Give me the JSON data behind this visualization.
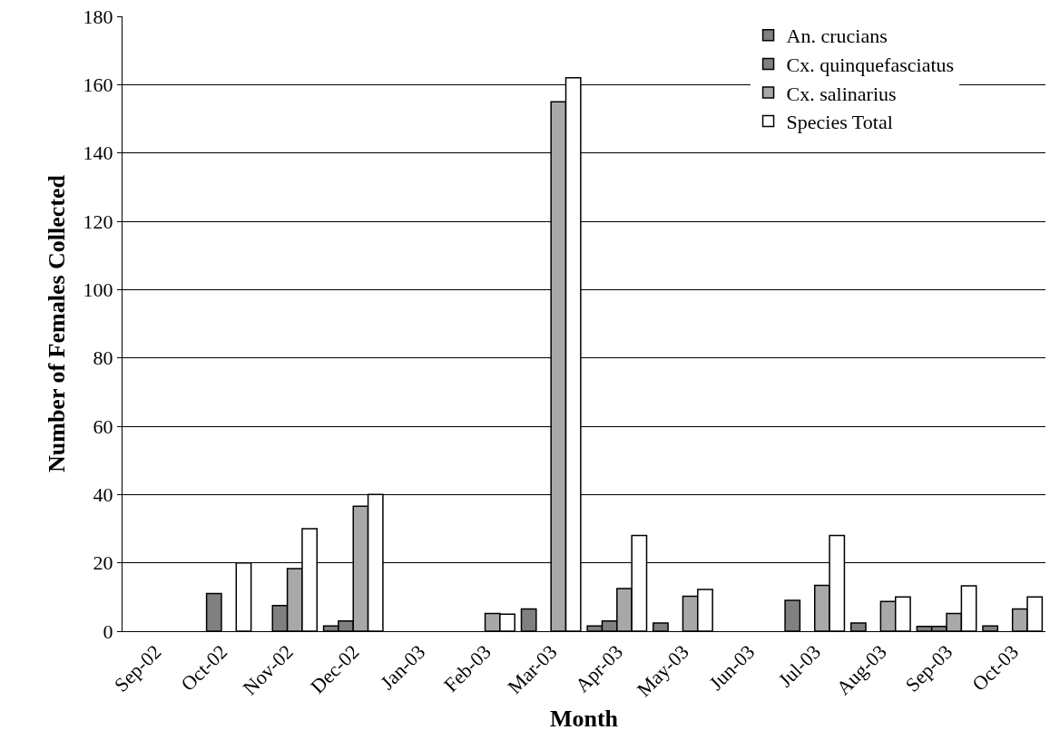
{
  "chart_data": {
    "type": "bar",
    "xlabel": "Month",
    "ylabel": "Number of Females Collected",
    "categories": [
      "Sep-02",
      "Oct-02",
      "Nov-02",
      "Dec-02",
      "Jan-03",
      "Feb-03",
      "Mar-03",
      "Apr-03",
      "May-03",
      "Jun-03",
      "Jul-03",
      "Aug-03",
      "Sep-03",
      "Oct-03"
    ],
    "series": [
      {
        "name": "An. crucians",
        "color": "#808080",
        "values": [
          null,
          null,
          null,
          1.5,
          null,
          null,
          6.5,
          1.5,
          2.4,
          null,
          9,
          2.4,
          1.4,
          1.5
        ]
      },
      {
        "name": "Cx. quinquefasciatus",
        "color": "#808080",
        "values": [
          null,
          11,
          7.5,
          3,
          null,
          null,
          null,
          3,
          null,
          null,
          null,
          null,
          1.4,
          null
        ]
      },
      {
        "name": "Cx. salinarius",
        "color": "#a8a8a8",
        "values": [
          null,
          null,
          18.3,
          36.6,
          null,
          5.2,
          155,
          12.5,
          10.2,
          null,
          13.4,
          8.7,
          5.2,
          6.5
        ]
      },
      {
        "name": "Species Total",
        "color": "#ffffff",
        "values": [
          null,
          20,
          30,
          40,
          null,
          5,
          162,
          28,
          12.2,
          null,
          28,
          10,
          13.3,
          10
        ]
      }
    ],
    "ylim": [
      0,
      180
    ],
    "yticks": [
      0,
      20,
      40,
      60,
      80,
      100,
      120,
      140,
      160,
      180
    ],
    "grid": "y",
    "legend": "top right"
  }
}
